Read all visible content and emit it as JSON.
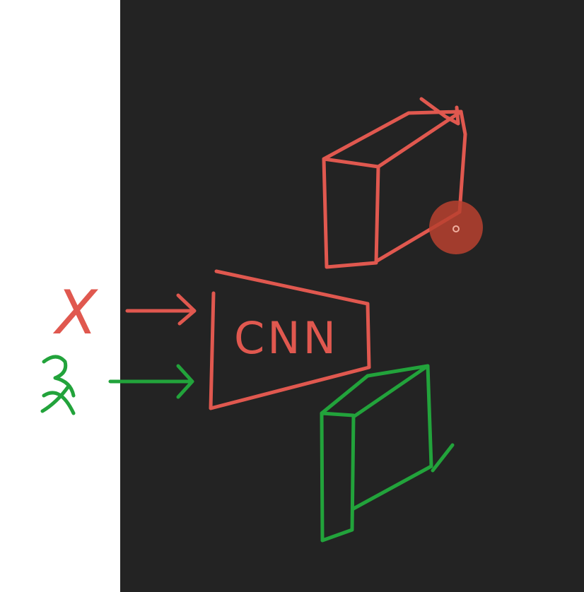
{
  "labels": {
    "input": "X",
    "network": "CNN"
  }
}
